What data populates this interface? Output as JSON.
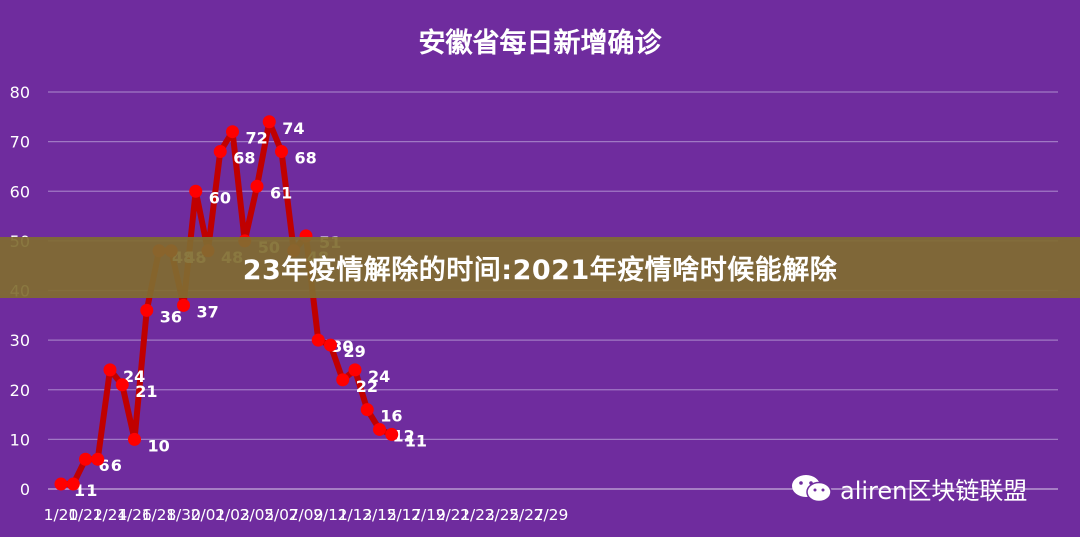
{
  "chart_data": {
    "type": "line",
    "title": "安徽省每日新增确诊",
    "ylim": [
      0,
      80
    ],
    "yticks": [
      0,
      10,
      20,
      30,
      40,
      50,
      60,
      70,
      80
    ],
    "grid": true,
    "xtick_labels": [
      "1/20",
      "1/22",
      "1/24",
      "1/26",
      "1/28",
      "1/30",
      "2/01",
      "2/03",
      "2/05",
      "2/07",
      "2/09",
      "2/11",
      "2/13",
      "2/15",
      "2/17",
      "2/19",
      "2/21",
      "2/23",
      "2/25",
      "2/27",
      "2/29"
    ],
    "series": [
      {
        "color": "#c00000",
        "point_color": "#ff0000",
        "x": [
          "1/20",
          "1/21",
          "1/22",
          "1/23",
          "1/24",
          "1/25",
          "1/26",
          "1/27",
          "1/28",
          "1/29",
          "1/30",
          "1/31",
          "2/01",
          "2/02",
          "2/03",
          "2/04",
          "2/05",
          "2/06",
          "2/07",
          "2/08",
          "2/09",
          "2/10",
          "2/11",
          "2/12",
          "2/13",
          "2/14",
          "2/15",
          "2/16"
        ],
        "values": [
          1,
          1,
          6,
          6,
          24,
          21,
          10,
          36,
          48,
          48,
          37,
          60,
          48,
          68,
          72,
          50,
          61,
          74,
          68,
          48,
          51,
          30,
          29,
          22,
          24,
          16,
          12,
          11
        ],
        "labels": [
          "1",
          "1",
          "6",
          "6",
          "24",
          "21",
          "10",
          "36",
          "48",
          "48",
          "37",
          "60",
          "48",
          "68",
          "72",
          "50",
          "61",
          "74",
          "68",
          "48",
          "51",
          "30",
          "29",
          "22",
          "24",
          "16",
          "12",
          "11"
        ]
      }
    ]
  },
  "banner": {
    "text": "23年疫情解除的时间:2021年疫情啥时候能解除"
  },
  "watermark": {
    "text": "aliren区块链联盟",
    "icon": "wechat-icon"
  },
  "colors": {
    "background": "#6f2c9e",
    "line": "#c00000",
    "points": "#ff0000",
    "grid": "#a078c4",
    "banner": "#806c30"
  }
}
